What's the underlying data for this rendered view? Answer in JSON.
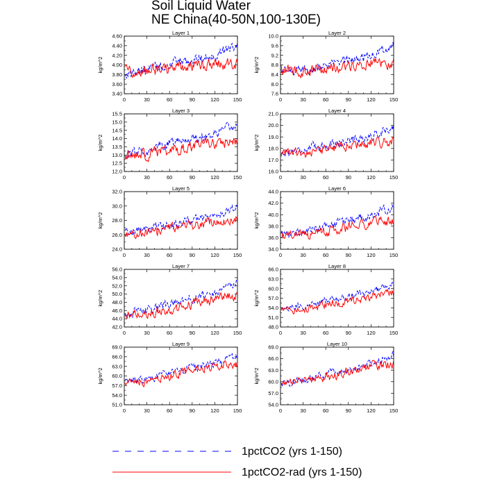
{
  "title": "Soil Liquid Water",
  "subtitle": "NE China(40-50N,100-130E)",
  "colors": {
    "series1": "#0000ff",
    "series2": "#ff0000"
  },
  "chart_data": {
    "type": "line",
    "x": {
      "start": 1,
      "end": 150,
      "ticks": [
        0,
        30,
        60,
        90,
        120,
        150
      ],
      "range": [
        0,
        150
      ]
    },
    "ylabel": "kg/m^2",
    "legend": [
      {
        "name": "1pctCO2 (yrs 1-150)",
        "style": "dashed",
        "color": "#0000ff"
      },
      {
        "name": "1pctCO2-rad (yrs 1-150)",
        "style": "solid",
        "color": "#ff0000"
      }
    ],
    "panels": [
      {
        "title": "Layer 1",
        "ylim": [
          3.4,
          4.6
        ],
        "yticks": [
          "3.40",
          "3.60",
          "3.80",
          "4.00",
          "4.20",
          "4.40",
          "4.60"
        ],
        "series": [
          {
            "name": "1pctCO2 (yrs 1-150)",
            "trend": [
              [
                1,
                3.8
              ],
              [
                30,
                3.9
              ],
              [
                60,
                4.0
              ],
              [
                90,
                4.1
              ],
              [
                120,
                4.2
              ],
              [
                150,
                4.42
              ]
            ],
            "amp": 0.12
          },
          {
            "name": "1pctCO2-rad (yrs 1-150)",
            "trend": [
              [
                1,
                3.88
              ],
              [
                30,
                3.88
              ],
              [
                60,
                3.93
              ],
              [
                90,
                3.98
              ],
              [
                120,
                4.05
              ],
              [
                150,
                4.0
              ]
            ],
            "amp": 0.14
          }
        ]
      },
      {
        "title": "Layer 2",
        "ylim": [
          7.6,
          10.0
        ],
        "yticks": [
          "7.6",
          "8.0",
          "8.4",
          "8.8",
          "9.2",
          "9.6",
          "10.0"
        ],
        "series": [
          {
            "name": "1pctCO2 (yrs 1-150)",
            "trend": [
              [
                1,
                8.5
              ],
              [
                30,
                8.6
              ],
              [
                60,
                8.8
              ],
              [
                90,
                9.0
              ],
              [
                120,
                9.2
              ],
              [
                150,
                9.6
              ]
            ],
            "amp": 0.22
          },
          {
            "name": "1pctCO2-rad (yrs 1-150)",
            "trend": [
              [
                1,
                8.6
              ],
              [
                30,
                8.55
              ],
              [
                60,
                8.65
              ],
              [
                90,
                8.75
              ],
              [
                120,
                8.9
              ],
              [
                150,
                8.85
              ]
            ],
            "amp": 0.26
          }
        ]
      },
      {
        "title": "Layer 3",
        "ylim": [
          12.0,
          15.5
        ],
        "yticks": [
          "12.0",
          "12.5",
          "13.0",
          "13.5",
          "14.0",
          "14.5",
          "15.0",
          "15.5"
        ],
        "series": [
          {
            "name": "1pctCO2 (yrs 1-150)",
            "trend": [
              [
                1,
                13.0
              ],
              [
                30,
                13.3
              ],
              [
                60,
                13.7
              ],
              [
                90,
                14.0
              ],
              [
                120,
                14.3
              ],
              [
                150,
                14.8
              ]
            ],
            "amp": 0.35
          },
          {
            "name": "1pctCO2-rad (yrs 1-150)",
            "trend": [
              [
                1,
                13.0
              ],
              [
                30,
                13.0
              ],
              [
                60,
                13.3
              ],
              [
                90,
                13.5
              ],
              [
                120,
                13.8
              ],
              [
                150,
                13.8
              ]
            ],
            "amp": 0.4
          }
        ]
      },
      {
        "title": "Layer 4",
        "ylim": [
          16.0,
          21.0
        ],
        "yticks": [
          "16.0",
          "17.0",
          "18.0",
          "19.0",
          "20.0",
          "21.0"
        ],
        "series": [
          {
            "name": "1pctCO2 (yrs 1-150)",
            "trend": [
              [
                1,
                17.6
              ],
              [
                30,
                17.9
              ],
              [
                60,
                18.3
              ],
              [
                90,
                18.7
              ],
              [
                120,
                19.0
              ],
              [
                150,
                19.9
              ]
            ],
            "amp": 0.45
          },
          {
            "name": "1pctCO2-rad (yrs 1-150)",
            "trend": [
              [
                1,
                17.6
              ],
              [
                30,
                17.6
              ],
              [
                60,
                17.9
              ],
              [
                90,
                18.2
              ],
              [
                120,
                18.5
              ],
              [
                150,
                18.6
              ]
            ],
            "amp": 0.5
          }
        ]
      },
      {
        "title": "Layer 5",
        "ylim": [
          24.0,
          32.0
        ],
        "yticks": [
          "24.0",
          "26.0",
          "28.0",
          "30.0",
          "32.0"
        ],
        "series": [
          {
            "name": "1pctCO2 (yrs 1-150)",
            "trend": [
              [
                1,
                26.5
              ],
              [
                30,
                26.8
              ],
              [
                60,
                27.3
              ],
              [
                90,
                28.0
              ],
              [
                120,
                28.6
              ],
              [
                150,
                29.8
              ]
            ],
            "amp": 0.7
          },
          {
            "name": "1pctCO2-rad (yrs 1-150)",
            "trend": [
              [
                1,
                26.5
              ],
              [
                30,
                26.3
              ],
              [
                60,
                26.8
              ],
              [
                90,
                27.3
              ],
              [
                120,
                27.9
              ],
              [
                150,
                28.2
              ]
            ],
            "amp": 0.8
          }
        ]
      },
      {
        "title": "Layer 6",
        "ylim": [
          34.0,
          44.0
        ],
        "yticks": [
          "34.0",
          "36.0",
          "38.0",
          "40.0",
          "42.0",
          "44.0"
        ],
        "series": [
          {
            "name": "1pctCO2 (yrs 1-150)",
            "trend": [
              [
                1,
                36.5
              ],
              [
                30,
                37.0
              ],
              [
                60,
                38.0
              ],
              [
                90,
                39.0
              ],
              [
                120,
                39.8
              ],
              [
                150,
                41.5
              ]
            ],
            "amp": 0.9
          },
          {
            "name": "1pctCO2-rad (yrs 1-150)",
            "trend": [
              [
                1,
                36.5
              ],
              [
                30,
                36.4
              ],
              [
                60,
                37.0
              ],
              [
                90,
                37.8
              ],
              [
                120,
                38.6
              ],
              [
                150,
                38.8
              ]
            ],
            "amp": 1.0
          }
        ]
      },
      {
        "title": "Layer 7",
        "ylim": [
          42.0,
          56.0
        ],
        "yticks": [
          "42.0",
          "44.0",
          "46.0",
          "48.0",
          "50.0",
          "52.0",
          "54.0",
          "56.0"
        ],
        "series": [
          {
            "name": "1pctCO2 (yrs 1-150)",
            "trend": [
              [
                1,
                45.0
              ],
              [
                30,
                46.0
              ],
              [
                60,
                47.5
              ],
              [
                90,
                49.0
              ],
              [
                120,
                50.3
              ],
              [
                150,
                52.5
              ]
            ],
            "amp": 1.2
          },
          {
            "name": "1pctCO2-rad (yrs 1-150)",
            "trend": [
              [
                1,
                45.0
              ],
              [
                30,
                45.3
              ],
              [
                60,
                46.3
              ],
              [
                90,
                47.5
              ],
              [
                120,
                48.8
              ],
              [
                150,
                49.5
              ]
            ],
            "amp": 1.4
          }
        ]
      },
      {
        "title": "Layer 8",
        "ylim": [
          48.0,
          66.0
        ],
        "yticks": [
          "48.0",
          "51.0",
          "54.0",
          "57.0",
          "60.0",
          "63.0",
          "66.0"
        ],
        "series": [
          {
            "name": "1pctCO2 (yrs 1-150)",
            "trend": [
              [
                1,
                53.5
              ],
              [
                30,
                54.5
              ],
              [
                60,
                56.0
              ],
              [
                90,
                57.5
              ],
              [
                120,
                59.0
              ],
              [
                150,
                61.5
              ]
            ],
            "amp": 1.3
          },
          {
            "name": "1pctCO2-rad (yrs 1-150)",
            "trend": [
              [
                1,
                53.5
              ],
              [
                30,
                53.5
              ],
              [
                60,
                54.8
              ],
              [
                90,
                56.3
              ],
              [
                120,
                57.6
              ],
              [
                150,
                58.5
              ]
            ],
            "amp": 1.5
          }
        ]
      },
      {
        "title": "Layer 9",
        "ylim": [
          51.0,
          69.0
        ],
        "yticks": [
          "51.0",
          "54.0",
          "57.0",
          "60.0",
          "63.0",
          "66.0",
          "69.0"
        ],
        "series": [
          {
            "name": "1pctCO2 (yrs 1-150)",
            "trend": [
              [
                1,
                58.0
              ],
              [
                30,
                59.0
              ],
              [
                60,
                61.0
              ],
              [
                90,
                62.5
              ],
              [
                120,
                64.0
              ],
              [
                150,
                66.0
              ]
            ],
            "amp": 1.3
          },
          {
            "name": "1pctCO2-rad (yrs 1-150)",
            "trend": [
              [
                1,
                58.0
              ],
              [
                30,
                58.5
              ],
              [
                60,
                59.8
              ],
              [
                90,
                61.5
              ],
              [
                120,
                63.0
              ],
              [
                150,
                63.5
              ]
            ],
            "amp": 1.5
          }
        ]
      },
      {
        "title": "Layer 10",
        "ylim": [
          54.0,
          69.0
        ],
        "yticks": [
          "54.0",
          "57.0",
          "60.0",
          "63.0",
          "66.0",
          "69.0"
        ],
        "series": [
          {
            "name": "1pctCO2 (yrs 1-150)",
            "trend": [
              [
                1,
                59.0
              ],
              [
                30,
                60.5
              ],
              [
                60,
                62.0
              ],
              [
                90,
                63.3
              ],
              [
                120,
                64.8
              ],
              [
                150,
                67.0
              ]
            ],
            "amp": 1.1
          },
          {
            "name": "1pctCO2-rad (yrs 1-150)",
            "trend": [
              [
                1,
                59.5
              ],
              [
                30,
                59.8
              ],
              [
                60,
                61.0
              ],
              [
                90,
                62.5
              ],
              [
                120,
                64.0
              ],
              [
                150,
                64.8
              ]
            ],
            "amp": 1.3
          }
        ]
      }
    ]
  }
}
